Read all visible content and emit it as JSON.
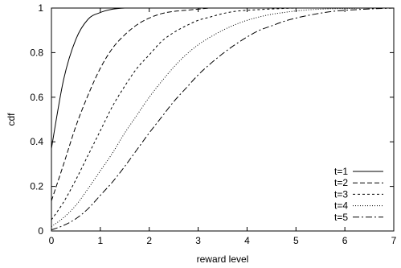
{
  "chart_data": {
    "type": "line",
    "xlabel": "reward level",
    "ylabel": "cdf",
    "xlim": [
      0,
      7
    ],
    "ylim": [
      0,
      1
    ],
    "x_ticks": [
      "0",
      "1",
      "2",
      "3",
      "4",
      "5",
      "6",
      "7"
    ],
    "y_ticks": [
      "0",
      "0.2",
      "0.4",
      "0.6",
      "0.8",
      "1"
    ],
    "grid": false,
    "legend_position": "bottom-right",
    "line_color": "#000000",
    "x": [
      0,
      0.25,
      0.5,
      0.75,
      1,
      1.25,
      1.5,
      1.75,
      2,
      2.25,
      2.5,
      2.75,
      3,
      3.25,
      3.5,
      3.75,
      4,
      4.25,
      4.5,
      4.75,
      5,
      5.25,
      5.5,
      5.75,
      6,
      6.25,
      6.5,
      6.75,
      7
    ],
    "series": [
      {
        "name": "t=1",
        "dash": "none",
        "values": [
          0.37,
          0.68,
          0.86,
          0.95,
          0.98,
          0.995,
          1,
          1,
          1,
          1,
          1,
          1,
          1,
          1,
          1,
          1,
          1,
          1,
          1,
          1,
          1,
          1,
          1,
          1,
          1,
          1,
          1,
          1,
          1
        ]
      },
      {
        "name": "t=2",
        "dash": "6,3",
        "values": [
          0.135,
          0.3,
          0.47,
          0.61,
          0.73,
          0.82,
          0.88,
          0.925,
          0.955,
          0.975,
          0.985,
          0.99,
          0.995,
          1,
          1,
          1,
          1,
          1,
          1,
          1,
          1,
          1,
          1,
          1,
          1,
          1,
          1,
          1,
          1
        ]
      },
      {
        "name": "t=3",
        "dash": "3,3",
        "values": [
          0.05,
          0.13,
          0.23,
          0.34,
          0.45,
          0.56,
          0.65,
          0.73,
          0.79,
          0.85,
          0.89,
          0.92,
          0.945,
          0.96,
          0.975,
          0.985,
          0.99,
          0.993,
          0.996,
          0.998,
          1,
          1,
          1,
          1,
          1,
          1,
          1,
          1,
          1
        ]
      },
      {
        "name": "t=4",
        "dash": "1,2",
        "values": [
          0.02,
          0.06,
          0.115,
          0.19,
          0.27,
          0.35,
          0.44,
          0.52,
          0.6,
          0.67,
          0.735,
          0.79,
          0.835,
          0.87,
          0.9,
          0.925,
          0.945,
          0.96,
          0.972,
          0.98,
          0.987,
          0.992,
          0.995,
          0.997,
          0.998,
          0.999,
          1,
          1,
          1
        ]
      },
      {
        "name": "t=5",
        "dash": "8,3,2,3",
        "values": [
          0.005,
          0.025,
          0.055,
          0.1,
          0.16,
          0.22,
          0.29,
          0.365,
          0.44,
          0.51,
          0.58,
          0.64,
          0.7,
          0.75,
          0.795,
          0.835,
          0.87,
          0.9,
          0.92,
          0.94,
          0.955,
          0.967,
          0.977,
          0.985,
          0.99,
          0.993,
          0.996,
          0.998,
          1
        ]
      }
    ]
  }
}
